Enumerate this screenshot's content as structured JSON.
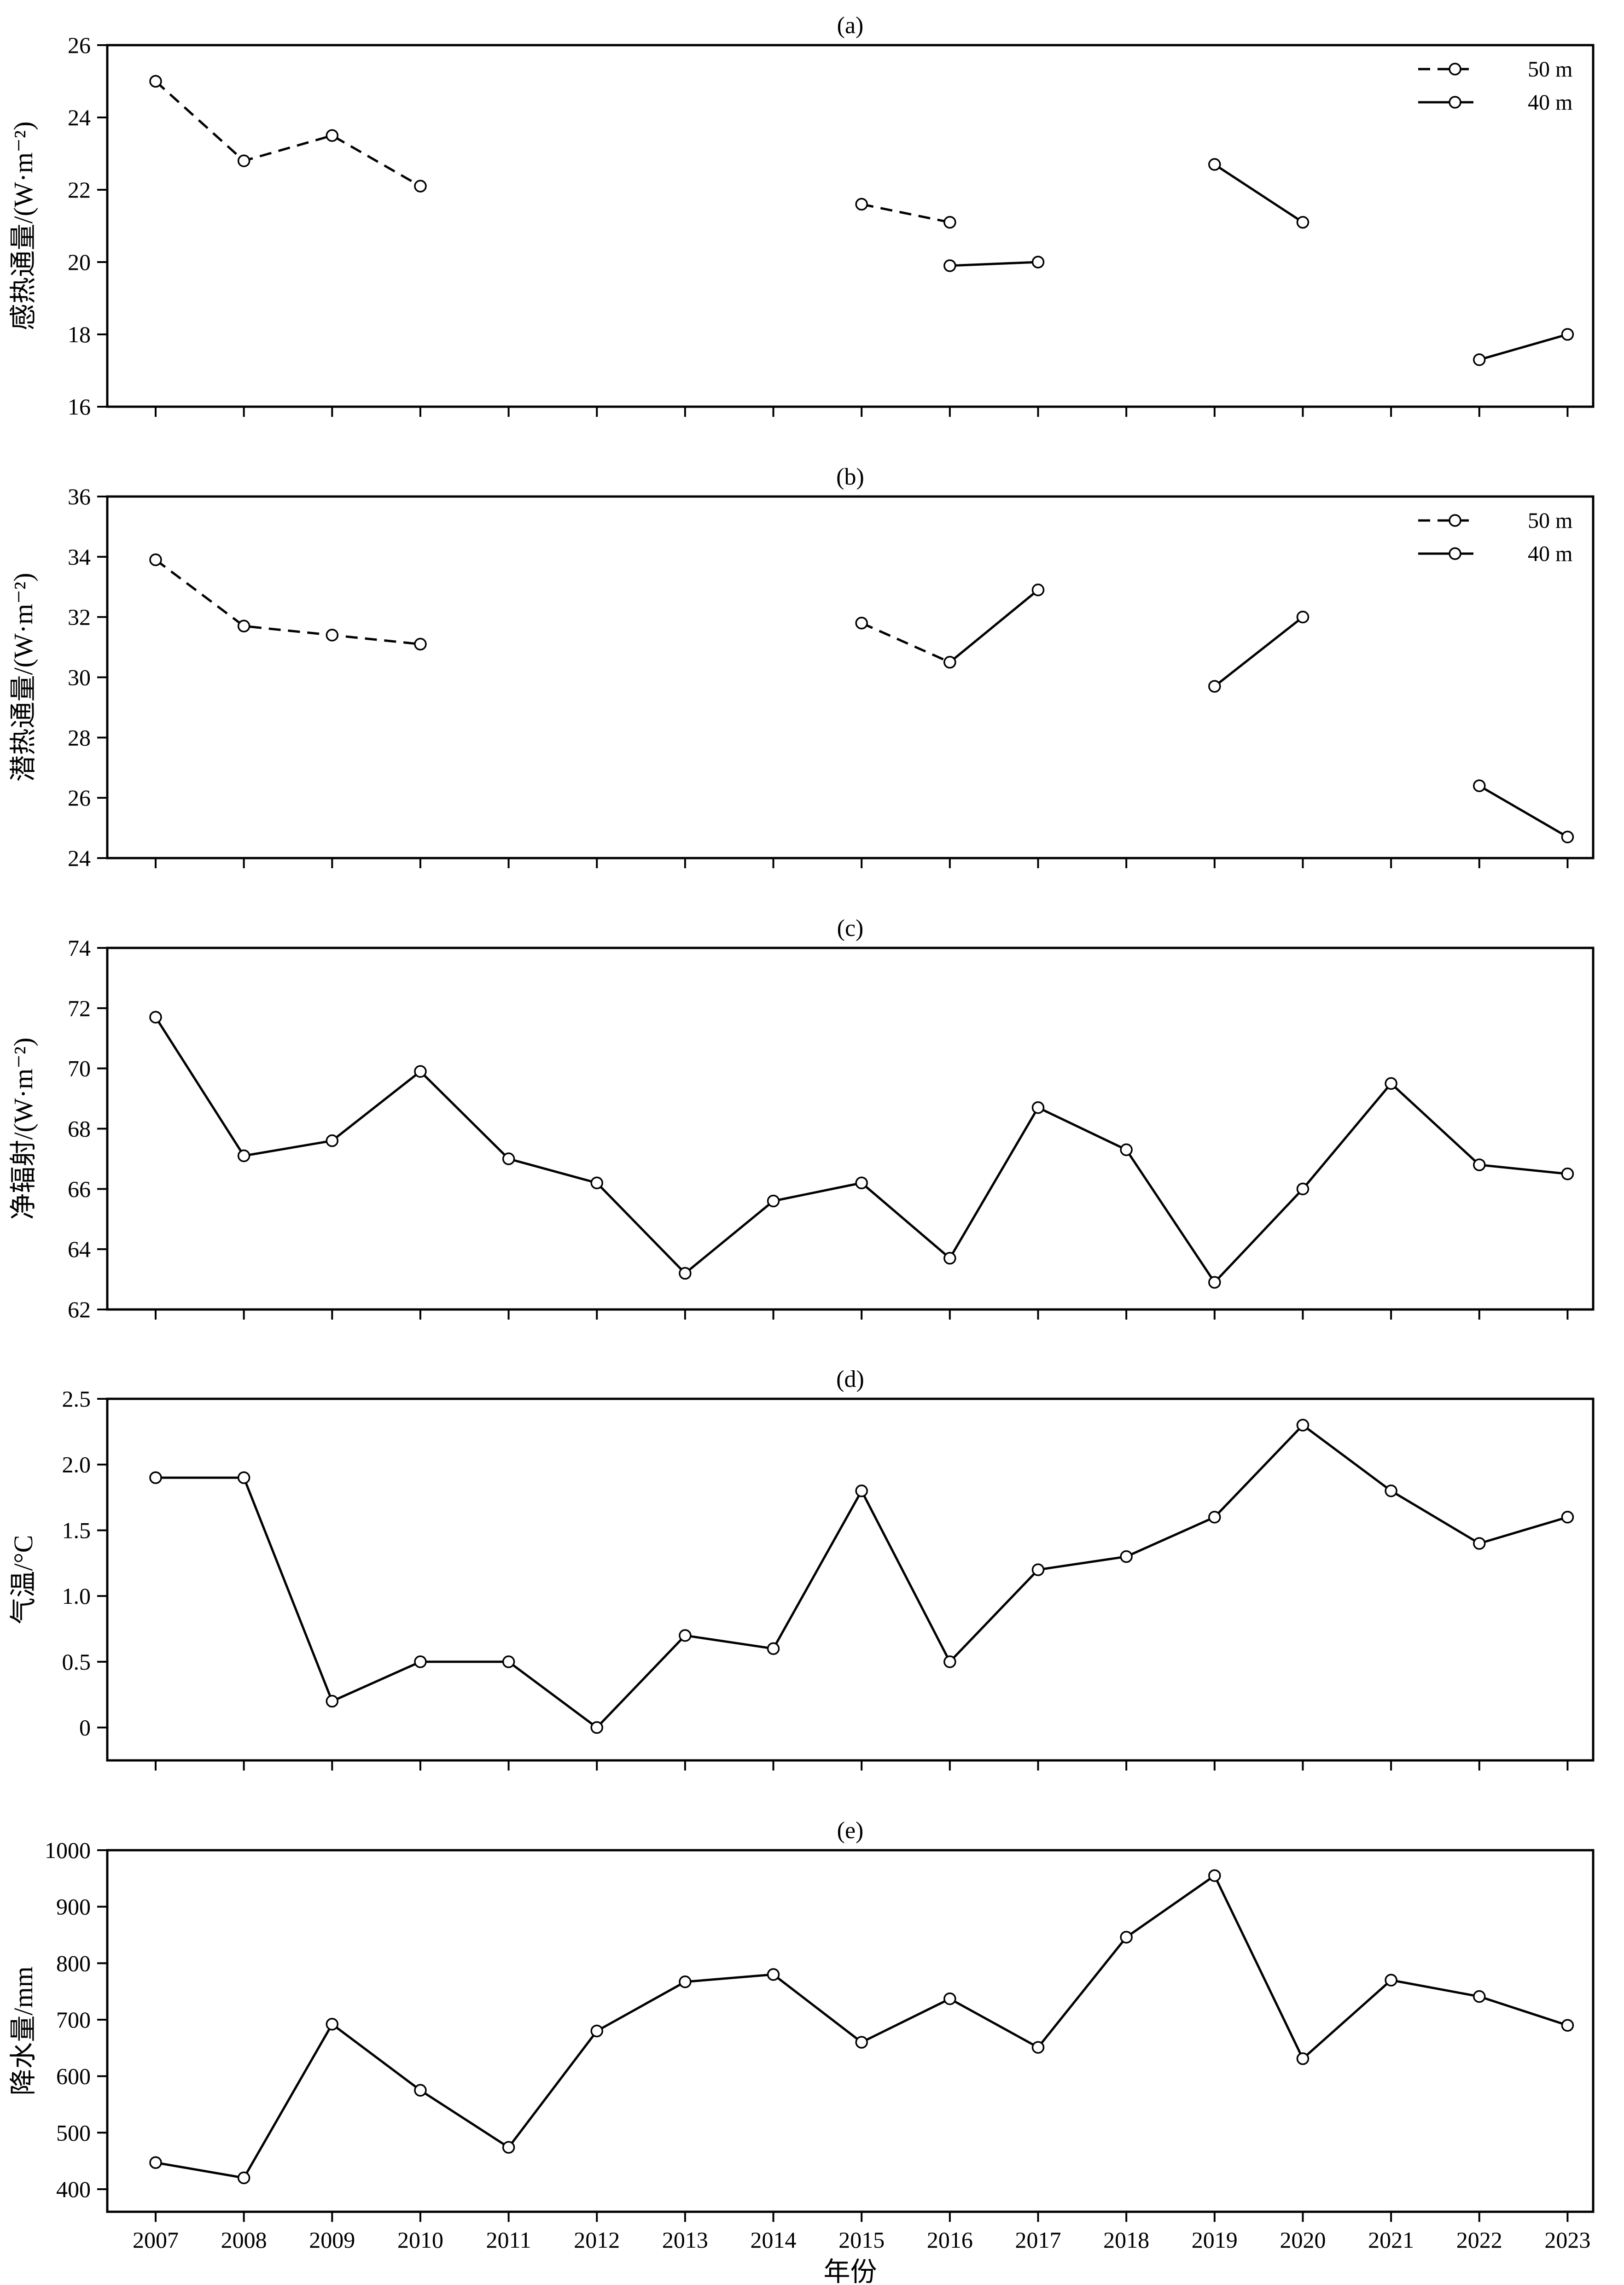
{
  "x_axis": {
    "label": "年份",
    "ticks": [
      "2007",
      "2008",
      "2009",
      "2010",
      "2011",
      "2012",
      "2013",
      "2014",
      "2015",
      "2016",
      "2017",
      "2018",
      "2019",
      "2020",
      "2021",
      "2022",
      "2023"
    ]
  },
  "chart_data": [
    {
      "type": "line",
      "panel": "(a)",
      "ylabel": "感热通量/(W·m⁻²)",
      "ylim": [
        16,
        26
      ],
      "yticks": [
        16,
        18,
        20,
        22,
        24,
        26
      ],
      "legend": {
        "position": "top-right"
      },
      "series": [
        {
          "name": "50 m",
          "style": "dashed",
          "segments": [
            {
              "x": [
                2007,
                2008,
                2009,
                2010
              ],
              "y": [
                25.0,
                22.8,
                23.5,
                22.1
              ]
            },
            {
              "x": [
                2015,
                2016
              ],
              "y": [
                21.6,
                21.1
              ]
            }
          ]
        },
        {
          "name": "40 m",
          "style": "solid",
          "segments": [
            {
              "x": [
                2016,
                2017
              ],
              "y": [
                19.9,
                20.0
              ]
            },
            {
              "x": [
                2019,
                2020
              ],
              "y": [
                22.7,
                21.1
              ]
            },
            {
              "x": [
                2022,
                2023
              ],
              "y": [
                17.3,
                18.0
              ]
            }
          ]
        }
      ]
    },
    {
      "type": "line",
      "panel": "(b)",
      "ylabel": "潜热通量/(W·m⁻²)",
      "ylim": [
        24,
        36
      ],
      "yticks": [
        24,
        26,
        28,
        30,
        32,
        34,
        36
      ],
      "legend": {
        "position": "top-right"
      },
      "series": [
        {
          "name": "50 m",
          "style": "dashed",
          "segments": [
            {
              "x": [
                2007,
                2008,
                2009,
                2010
              ],
              "y": [
                33.9,
                31.7,
                31.4,
                31.1
              ]
            },
            {
              "x": [
                2015,
                2016
              ],
              "y": [
                31.8,
                30.5
              ]
            }
          ]
        },
        {
          "name": "40 m",
          "style": "solid",
          "segments": [
            {
              "x": [
                2016,
                2017
              ],
              "y": [
                30.5,
                32.9
              ]
            },
            {
              "x": [
                2019,
                2020
              ],
              "y": [
                29.7,
                32.0
              ]
            },
            {
              "x": [
                2022,
                2023
              ],
              "y": [
                26.4,
                24.7
              ]
            }
          ]
        }
      ]
    },
    {
      "type": "line",
      "panel": "(c)",
      "ylabel": "净辐射/(W·m⁻²)",
      "ylim": [
        62,
        74
      ],
      "yticks": [
        62,
        64,
        66,
        68,
        70,
        72,
        74
      ],
      "series": [
        {
          "style": "solid",
          "segments": [
            {
              "x": [
                2007,
                2008,
                2009,
                2010,
                2011,
                2012,
                2013,
                2014,
                2015,
                2016,
                2017,
                2018,
                2019,
                2020,
                2021,
                2022,
                2023
              ],
              "y": [
                71.7,
                67.1,
                67.6,
                69.9,
                67.0,
                66.2,
                63.2,
                65.6,
                66.2,
                63.7,
                68.7,
                67.3,
                62.9,
                66.0,
                69.5,
                66.8,
                66.5
              ]
            }
          ]
        }
      ]
    },
    {
      "type": "line",
      "panel": "(d)",
      "ylabel": "气温/°C",
      "ylim": [
        -0.25,
        2.5
      ],
      "yticks": [
        0,
        0.5,
        1.0,
        1.5,
        2.0,
        2.5
      ],
      "ytick_labels": [
        "0",
        "0.5",
        "1.0",
        "1.5",
        "2.0",
        "2.5"
      ],
      "series": [
        {
          "style": "solid",
          "segments": [
            {
              "x": [
                2007,
                2008,
                2009,
                2010,
                2011,
                2012,
                2013,
                2014,
                2015,
                2016,
                2017,
                2018,
                2019,
                2020,
                2021,
                2022,
                2023
              ],
              "y": [
                1.9,
                1.9,
                0.2,
                0.5,
                0.5,
                0.0,
                0.7,
                0.6,
                1.8,
                0.5,
                1.2,
                1.3,
                1.6,
                2.3,
                1.8,
                1.4,
                1.6
              ]
            }
          ]
        }
      ]
    },
    {
      "type": "line",
      "panel": "(e)",
      "ylabel": "降水量/mm",
      "ylim": [
        360,
        1000
      ],
      "yticks": [
        400,
        500,
        600,
        700,
        800,
        900,
        1000
      ],
      "series": [
        {
          "style": "solid",
          "segments": [
            {
              "x": [
                2007,
                2008,
                2009,
                2010,
                2011,
                2012,
                2013,
                2014,
                2015,
                2016,
                2017,
                2018,
                2019,
                2020,
                2021,
                2022,
                2023
              ],
              "y": [
                447,
                420,
                692,
                575,
                474,
                680,
                767,
                780,
                660,
                737,
                651,
                846,
                955,
                631,
                770,
                741,
                690
              ]
            }
          ]
        }
      ]
    }
  ]
}
